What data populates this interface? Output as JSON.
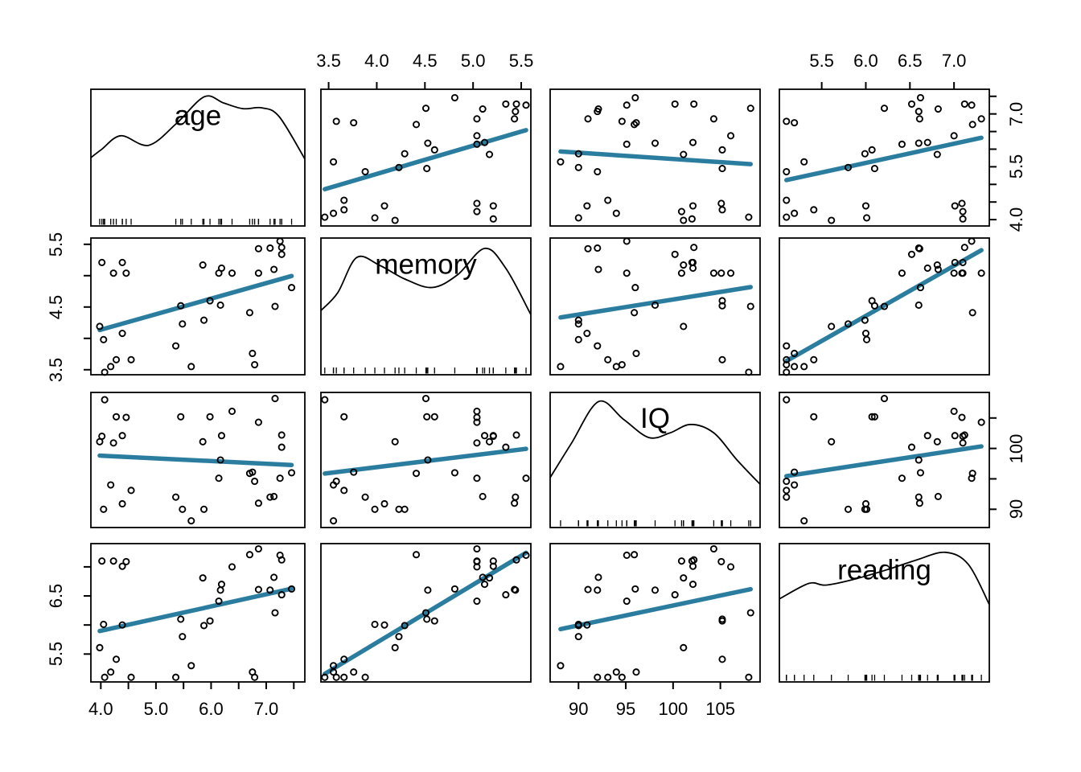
{
  "chart_data": {
    "type": "scatter",
    "subtype": "scatterplot-matrix",
    "title": "",
    "grid": "4x4",
    "legend": "none",
    "style": {
      "background": "#ffffff",
      "foreground": "#000000",
      "point_color": "#000000",
      "regression_line_color": "#2b7da0",
      "point_radius": 3.6,
      "point_stroke_width": 1.9,
      "regression_line_width": 5.5,
      "panel_border_width": 1.8
    },
    "variables": [
      {
        "name": "age",
        "label": "age",
        "range": [
          3.82,
          7.7
        ],
        "density": [
          [
            0,
            0.5
          ],
          [
            0.05,
            0.56
          ],
          [
            0.14,
            0.66
          ],
          [
            0.27,
            0.59
          ],
          [
            0.4,
            0.75
          ],
          [
            0.53,
            0.945
          ],
          [
            0.62,
            0.9
          ],
          [
            0.71,
            0.858
          ],
          [
            0.8,
            0.864
          ],
          [
            0.88,
            0.8
          ],
          [
            1.0,
            0.49
          ]
        ]
      },
      {
        "name": "memory",
        "label": "memory",
        "range": [
          3.42,
          5.6
        ],
        "density": [
          [
            0,
            0.47
          ],
          [
            0.08,
            0.6
          ],
          [
            0.17,
            0.857
          ],
          [
            0.28,
            0.8
          ],
          [
            0.4,
            0.7
          ],
          [
            0.53,
            0.638
          ],
          [
            0.65,
            0.73
          ],
          [
            0.78,
            0.924
          ],
          [
            0.88,
            0.78
          ],
          [
            1.0,
            0.44
          ]
        ]
      },
      {
        "name": "IQ",
        "label": "IQ",
        "range": [
          87.0,
          109.2
        ],
        "density": [
          [
            0,
            0.37
          ],
          [
            0.1,
            0.62
          ],
          [
            0.23,
            0.932
          ],
          [
            0.35,
            0.8
          ],
          [
            0.47,
            0.666
          ],
          [
            0.57,
            0.7
          ],
          [
            0.67,
            0.763
          ],
          [
            0.78,
            0.7
          ],
          [
            0.89,
            0.5
          ],
          [
            1.0,
            0.32
          ]
        ]
      },
      {
        "name": "reading",
        "label": "reading",
        "range": [
          5.02,
          7.4
        ],
        "density": [
          [
            0,
            0.6
          ],
          [
            0.14,
            0.712
          ],
          [
            0.22,
            0.7
          ],
          [
            0.35,
            0.74
          ],
          [
            0.51,
            0.81
          ],
          [
            0.65,
            0.88
          ],
          [
            0.79,
            0.937
          ],
          [
            0.9,
            0.85
          ],
          [
            1.0,
            0.56
          ]
        ]
      }
    ],
    "observations_columns": [
      "age",
      "memory",
      "IQ",
      "reading"
    ],
    "observations": [
      [
        4.07,
        3.46,
        108.0,
        5.1
      ],
      [
        5.36,
        3.88,
        92.0,
        5.1
      ],
      [
        4.55,
        3.66,
        93.1,
        5.1
      ],
      [
        6.79,
        3.58,
        94.6,
        5.1
      ],
      [
        6.75,
        3.76,
        96.1,
        5.19
      ],
      [
        4.18,
        3.55,
        94.0,
        5.19
      ],
      [
        5.64,
        3.55,
        88.1,
        5.3
      ],
      [
        4.28,
        3.66,
        105.2,
        5.41
      ],
      [
        3.98,
        4.19,
        101.1,
        5.61
      ],
      [
        5.48,
        4.23,
        90.0,
        5.8
      ],
      [
        5.87,
        4.29,
        90.0,
        5.99
      ],
      [
        5.98,
        4.6,
        105.2,
        6.07
      ],
      [
        4.39,
        4.08,
        90.9,
        6.0
      ],
      [
        4.05,
        3.98,
        90.0,
        6.01
      ],
      [
        5.45,
        4.52,
        105.2,
        6.1
      ],
      [
        7.16,
        4.51,
        108.2,
        6.21
      ],
      [
        6.14,
        5.04,
        95.1,
        6.41
      ],
      [
        7.28,
        5.34,
        100.2,
        6.52
      ],
      [
        7.07,
        5.44,
        92.0,
        6.6
      ],
      [
        6.17,
        4.53,
        98.1,
        6.6
      ],
      [
        6.86,
        5.43,
        91.0,
        6.61
      ],
      [
        7.46,
        4.81,
        96.0,
        6.62
      ],
      [
        6.19,
        5.12,
        102.1,
        6.7
      ],
      [
        5.85,
        5.17,
        101.1,
        6.81
      ],
      [
        7.14,
        5.1,
        92.1,
        6.82
      ],
      [
        6.38,
        5.04,
        106.1,
        7.0
      ],
      [
        4.39,
        5.21,
        102.1,
        7.01
      ],
      [
        4.46,
        5.04,
        105.1,
        7.09
      ],
      [
        4.23,
        5.04,
        100.9,
        7.1
      ],
      [
        4.02,
        5.21,
        102.0,
        7.1
      ],
      [
        7.28,
        5.45,
        102.2,
        7.12
      ],
      [
        7.25,
        5.55,
        95.1,
        7.2
      ],
      [
        6.7,
        4.41,
        95.9,
        7.21
      ],
      [
        6.86,
        5.04,
        104.3,
        7.31
      ]
    ],
    "axes": [
      {
        "variable": "memory",
        "side": "top",
        "col": 1,
        "tick_values": [
          3.5,
          4.0,
          4.5,
          5.0,
          5.5
        ],
        "labels": [
          "3.5",
          "4.0",
          "4.5",
          "5.0",
          "5.5"
        ],
        "label_values": [
          3.5,
          4.0,
          4.5,
          5.0,
          5.5
        ]
      },
      {
        "variable": "reading",
        "side": "top",
        "col": 3,
        "tick_values": [
          5.5,
          6.0,
          6.5,
          7.0
        ],
        "labels": [
          "5.5",
          "6.0",
          "6.5",
          "7.0"
        ],
        "label_values": [
          5.5,
          6.0,
          6.5,
          7.0
        ]
      },
      {
        "variable": "age",
        "side": "right",
        "row": 0,
        "tick_values": [
          4.0,
          4.5,
          5.0,
          5.5,
          6.0,
          6.5,
          7.0,
          7.5
        ],
        "labels": [
          "4.0",
          "5.5",
          "7.0"
        ],
        "label_values": [
          4.0,
          5.5,
          7.0
        ]
      },
      {
        "variable": "IQ",
        "side": "right",
        "row": 2,
        "tick_values": [
          90,
          95,
          100,
          105
        ],
        "labels": [
          "90",
          "100"
        ],
        "label_values": [
          90,
          100
        ]
      },
      {
        "variable": "memory",
        "side": "left",
        "row": 1,
        "tick_values": [
          3.5,
          4.0,
          4.5,
          5.0,
          5.5
        ],
        "labels": [
          "3.5",
          "4.5",
          "5.5"
        ],
        "label_values": [
          3.5,
          4.5,
          5.5
        ]
      },
      {
        "variable": "reading",
        "side": "left",
        "row": 3,
        "tick_values": [
          5.5,
          6.0,
          6.5,
          7.0
        ],
        "labels": [
          "5.5",
          "6.5"
        ],
        "label_values": [
          5.5,
          6.5
        ]
      },
      {
        "variable": "age",
        "side": "bottom",
        "col": 0,
        "tick_values": [
          4.0,
          4.5,
          5.0,
          5.5,
          6.0,
          6.5,
          7.0,
          7.5
        ],
        "labels": [
          "4.0",
          "5.0",
          "6.0",
          "7.0"
        ],
        "label_values": [
          4.0,
          5.0,
          6.0,
          7.0
        ]
      },
      {
        "variable": "IQ",
        "side": "bottom",
        "col": 2,
        "tick_values": [
          90,
          95,
          100,
          105
        ],
        "labels": [
          "90",
          "95",
          "100",
          "105"
        ],
        "label_values": [
          90,
          95,
          100,
          105
        ]
      }
    ]
  }
}
